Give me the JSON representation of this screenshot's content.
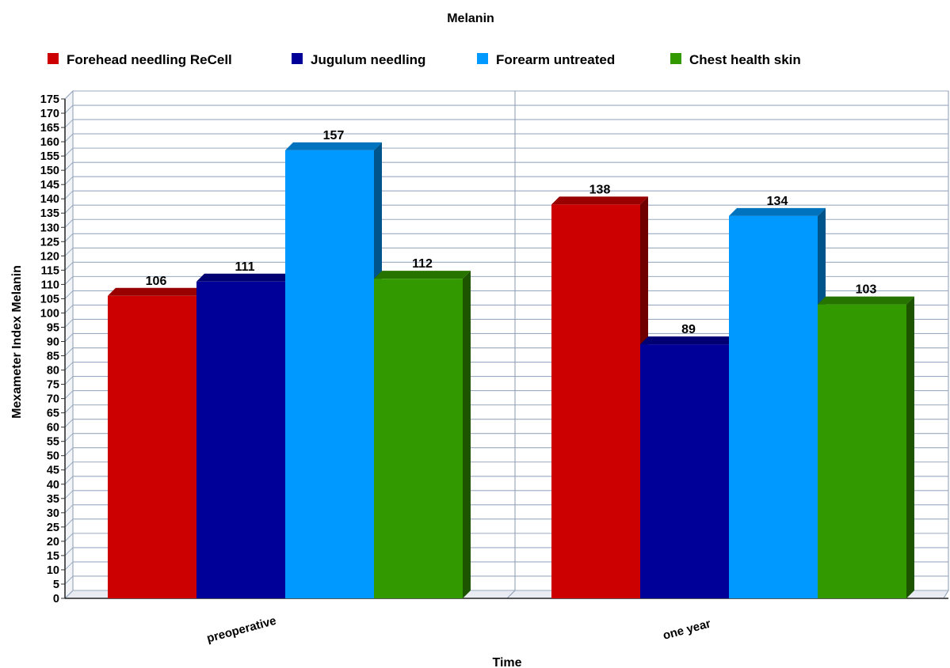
{
  "chart_data": {
    "type": "bar",
    "title": "Melanin",
    "xlabel": "Time",
    "ylabel": "Mexameter Index Melanin",
    "categories": [
      "preoperative",
      "one year"
    ],
    "series": [
      {
        "name": "Forehead needling ReCell",
        "color": "#cc0000",
        "values": [
          106,
          138
        ]
      },
      {
        "name": "Jugulum needling",
        "color": "#000099",
        "values": [
          111,
          89
        ]
      },
      {
        "name": "Forearm untreated",
        "color": "#0099ff",
        "values": [
          157,
          134
        ]
      },
      {
        "name": "Chest health skin",
        "color": "#339900",
        "values": [
          112,
          103
        ]
      }
    ],
    "ylim": [
      0,
      175
    ],
    "ytick_step": 5,
    "grid": true,
    "legend_position": "top",
    "style": "3d-bar"
  }
}
